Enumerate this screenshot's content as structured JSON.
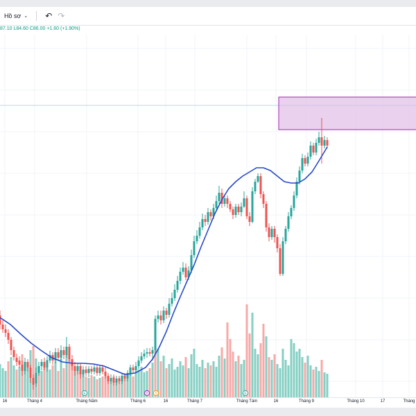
{
  "toolbar": {
    "profile_label": "Hồ sơ",
    "profile_chevron": "⌄",
    "undo_icon": "undo-icon",
    "redo_icon": "redo-icon"
  },
  "legend": {
    "ohlc_text": "87.10  L84.60  C86.00  +1.60 (+1.90%)"
  },
  "colors": {
    "up": "#26a69a",
    "down": "#ef5350",
    "up_volume": "#85cfc3",
    "down_volume": "#f7a9a7",
    "ma_line": "#2547c9",
    "zone_fill": "#e1bee7",
    "zone_border": "#9c27b0",
    "price_line": "#b2dfdb"
  },
  "chart_data": {
    "type": "candlestick",
    "x_labels": [
      "16",
      "Tháng 4",
      "Tháng Năm",
      "Tháng 6",
      "16",
      "Tháng 7",
      "Tháng Tám",
      "16",
      "Tháng 9",
      "Tháng 10",
      "17",
      "Tháng"
    ],
    "markers": [
      {
        "label": "E",
        "color": "#26a69a"
      },
      {
        "label": "D",
        "color": "#9c27b0"
      },
      {
        "label": "S",
        "color": "#ff9800"
      },
      {
        "label": "E",
        "color": "#26a69a"
      }
    ],
    "candles": [
      [
        0,
        405,
        418,
        398,
        425
      ],
      [
        4,
        418,
        425,
        412,
        430
      ],
      [
        8,
        425,
        430,
        418,
        436
      ],
      [
        12,
        430,
        440,
        425,
        446
      ],
      [
        16,
        440,
        455,
        436,
        462
      ],
      [
        20,
        455,
        465,
        450,
        470
      ],
      [
        24,
        466,
        472,
        460,
        478
      ],
      [
        28,
        470,
        476,
        464,
        480
      ],
      [
        32,
        476,
        485,
        470,
        492
      ],
      [
        36,
        485,
        472,
        466,
        490
      ],
      [
        40,
        472,
        480,
        468,
        486
      ],
      [
        44,
        480,
        495,
        476,
        502
      ],
      [
        48,
        495,
        505,
        490,
        512
      ],
      [
        52,
        503,
        488,
        480,
        508
      ],
      [
        56,
        488,
        478,
        472,
        492
      ],
      [
        60,
        478,
        472,
        468,
        484
      ],
      [
        64,
        472,
        480,
        466,
        484
      ],
      [
        68,
        480,
        470,
        464,
        486
      ],
      [
        72,
        470,
        462,
        456,
        474
      ],
      [
        76,
        462,
        470,
        458,
        476
      ],
      [
        80,
        470,
        458,
        452,
        474
      ],
      [
        84,
        458,
        466,
        452,
        470
      ],
      [
        88,
        466,
        455,
        448,
        470
      ],
      [
        92,
        455,
        462,
        450,
        468
      ],
      [
        96,
        462,
        450,
        436,
        466
      ],
      [
        100,
        450,
        468,
        446,
        472
      ],
      [
        104,
        468,
        478,
        462,
        484
      ],
      [
        108,
        478,
        485,
        472,
        492
      ],
      [
        112,
        485,
        478,
        474,
        490
      ],
      [
        116,
        478,
        490,
        474,
        496
      ],
      [
        120,
        490,
        483,
        478,
        494
      ],
      [
        124,
        483,
        488,
        478,
        492
      ],
      [
        128,
        488,
        482,
        478,
        494
      ],
      [
        132,
        482,
        486,
        478,
        490
      ],
      [
        136,
        486,
        480,
        476,
        490
      ],
      [
        140,
        480,
        488,
        476,
        492
      ],
      [
        144,
        488,
        480,
        476,
        492
      ],
      [
        148,
        480,
        486,
        476,
        490
      ],
      [
        152,
        486,
        492,
        480,
        496
      ],
      [
        156,
        492,
        500,
        488,
        504
      ],
      [
        160,
        500,
        495,
        490,
        504
      ],
      [
        164,
        495,
        502,
        490,
        506
      ],
      [
        168,
        502,
        496,
        492,
        506
      ],
      [
        172,
        496,
        500,
        492,
        504
      ],
      [
        176,
        500,
        492,
        488,
        504
      ],
      [
        180,
        492,
        496,
        488,
        500
      ],
      [
        184,
        496,
        488,
        484,
        500
      ],
      [
        188,
        488,
        480,
        476,
        492
      ],
      [
        192,
        480,
        484,
        476,
        488
      ],
      [
        196,
        484,
        478,
        472,
        488
      ],
      [
        200,
        478,
        470,
        464,
        482
      ],
      [
        204,
        470,
        464,
        458,
        474
      ],
      [
        208,
        464,
        460,
        454,
        468
      ],
      [
        212,
        460,
        458,
        452,
        466
      ],
      [
        216,
        458,
        460,
        452,
        464
      ],
      [
        220,
        460,
        455,
        450,
        470
      ],
      [
        224,
        455,
        410,
        405,
        460
      ],
      [
        228,
        410,
        405,
        398,
        415
      ],
      [
        232,
        405,
        412,
        398,
        418
      ],
      [
        236,
        412,
        398,
        392,
        416
      ],
      [
        240,
        398,
        404,
        394,
        410
      ],
      [
        244,
        404,
        388,
        380,
        408
      ],
      [
        248,
        388,
        380,
        372,
        392
      ],
      [
        252,
        380,
        368,
        360,
        384
      ],
      [
        256,
        368,
        355,
        348,
        372
      ],
      [
        260,
        355,
        342,
        336,
        360
      ],
      [
        264,
        342,
        336,
        328,
        346
      ],
      [
        268,
        336,
        350,
        330,
        354
      ],
      [
        272,
        350,
        340,
        334,
        354
      ],
      [
        276,
        340,
        318,
        310,
        344
      ],
      [
        280,
        318,
        298,
        290,
        322
      ],
      [
        284,
        298,
        290,
        282,
        302
      ],
      [
        288,
        290,
        278,
        270,
        294
      ],
      [
        292,
        278,
        266,
        258,
        282
      ],
      [
        296,
        266,
        270,
        260,
        276
      ],
      [
        300,
        270,
        256,
        250,
        274
      ],
      [
        304,
        256,
        262,
        252,
        268
      ],
      [
        308,
        262,
        250,
        244,
        266
      ],
      [
        312,
        250,
        240,
        232,
        254
      ],
      [
        316,
        240,
        228,
        218,
        244
      ],
      [
        320,
        228,
        244,
        222,
        250
      ],
      [
        324,
        244,
        236,
        230,
        248
      ],
      [
        328,
        236,
        244,
        232,
        250
      ],
      [
        332,
        244,
        252,
        240,
        256
      ],
      [
        336,
        252,
        260,
        248,
        266
      ],
      [
        340,
        260,
        248,
        244,
        264
      ],
      [
        344,
        248,
        256,
        244,
        260
      ],
      [
        348,
        256,
        248,
        242,
        262
      ],
      [
        352,
        248,
        236,
        226,
        250
      ],
      [
        356,
        236,
        262,
        232,
        266
      ],
      [
        360,
        262,
        270,
        256,
        276
      ],
      [
        364,
        270,
        226,
        220,
        272
      ],
      [
        368,
        226,
        212,
        208,
        230
      ],
      [
        372,
        212,
        204,
        200,
        214
      ],
      [
        376,
        204,
        230,
        200,
        236
      ],
      [
        380,
        230,
        244,
        226,
        250
      ],
      [
        384,
        244,
        278,
        240,
        284
      ],
      [
        388,
        278,
        292,
        272,
        298
      ],
      [
        392,
        292,
        280,
        276,
        296
      ],
      [
        396,
        280,
        292,
        276,
        300
      ],
      [
        400,
        292,
        308,
        288,
        314
      ],
      [
        404,
        308,
        345,
        302,
        348
      ],
      [
        408,
        345,
        298,
        292,
        348
      ],
      [
        412,
        298,
        280,
        276,
        302
      ],
      [
        416,
        280,
        262,
        256,
        284
      ],
      [
        420,
        262,
        250,
        246,
        266
      ],
      [
        424,
        250,
        232,
        226,
        254
      ],
      [
        428,
        232,
        212,
        206,
        236
      ],
      [
        432,
        212,
        196,
        190,
        216
      ],
      [
        436,
        196,
        178,
        172,
        200
      ],
      [
        440,
        178,
        186,
        174,
        190
      ],
      [
        444,
        186,
        176,
        170,
        190
      ],
      [
        448,
        176,
        160,
        154,
        180
      ],
      [
        452,
        160,
        170,
        156,
        174
      ],
      [
        456,
        170,
        156,
        150,
        174
      ],
      [
        460,
        156,
        148,
        140,
        160
      ],
      [
        464,
        148,
        160,
        120,
        186
      ],
      [
        468,
        160,
        152,
        146,
        164
      ],
      [
        472,
        152,
        160,
        148,
        164
      ]
    ],
    "volumes": [
      [
        0,
        48,
        1
      ],
      [
        4,
        42,
        1
      ],
      [
        8,
        38,
        1
      ],
      [
        12,
        52,
        0
      ],
      [
        16,
        58,
        1
      ],
      [
        20,
        46,
        1
      ],
      [
        24,
        40,
        0
      ],
      [
        28,
        44,
        1
      ],
      [
        32,
        62,
        0
      ],
      [
        36,
        50,
        1
      ],
      [
        40,
        44,
        1
      ],
      [
        44,
        68,
        1
      ],
      [
        48,
        74,
        0
      ],
      [
        52,
        56,
        1
      ],
      [
        56,
        36,
        0
      ],
      [
        60,
        38,
        1
      ],
      [
        64,
        48,
        0
      ],
      [
        68,
        54,
        1
      ],
      [
        72,
        40,
        1
      ],
      [
        76,
        46,
        0
      ],
      [
        80,
        52,
        1
      ],
      [
        84,
        38,
        0
      ],
      [
        88,
        56,
        1
      ],
      [
        92,
        42,
        0
      ],
      [
        96,
        72,
        1
      ],
      [
        100,
        60,
        0
      ],
      [
        104,
        50,
        0
      ],
      [
        108,
        42,
        1
      ],
      [
        112,
        38,
        0
      ],
      [
        116,
        44,
        0
      ],
      [
        120,
        34,
        1
      ],
      [
        124,
        30,
        0
      ],
      [
        128,
        28,
        1
      ],
      [
        132,
        32,
        0
      ],
      [
        136,
        30,
        1
      ],
      [
        140,
        26,
        0
      ],
      [
        144,
        28,
        1
      ],
      [
        148,
        30,
        0
      ],
      [
        152,
        34,
        0
      ],
      [
        156,
        28,
        0
      ],
      [
        160,
        24,
        1
      ],
      [
        164,
        30,
        0
      ],
      [
        168,
        26,
        1
      ],
      [
        172,
        28,
        0
      ],
      [
        176,
        30,
        1
      ],
      [
        180,
        32,
        0
      ],
      [
        184,
        28,
        1
      ],
      [
        188,
        34,
        1
      ],
      [
        192,
        30,
        0
      ],
      [
        196,
        38,
        1
      ],
      [
        200,
        40,
        1
      ],
      [
        204,
        44,
        1
      ],
      [
        208,
        36,
        1
      ],
      [
        212,
        38,
        1
      ],
      [
        216,
        42,
        0
      ],
      [
        220,
        50,
        1
      ],
      [
        224,
        84,
        0
      ],
      [
        228,
        70,
        1
      ],
      [
        232,
        52,
        0
      ],
      [
        236,
        60,
        1
      ],
      [
        240,
        42,
        0
      ],
      [
        244,
        48,
        1
      ],
      [
        248,
        56,
        1
      ],
      [
        252,
        40,
        1
      ],
      [
        256,
        44,
        1
      ],
      [
        260,
        52,
        1
      ],
      [
        264,
        46,
        1
      ],
      [
        268,
        58,
        0
      ],
      [
        272,
        42,
        1
      ],
      [
        276,
        62,
        1
      ],
      [
        280,
        70,
        1
      ],
      [
        284,
        48,
        1
      ],
      [
        288,
        44,
        1
      ],
      [
        292,
        54,
        1
      ],
      [
        296,
        42,
        0
      ],
      [
        300,
        50,
        1
      ],
      [
        304,
        46,
        0
      ],
      [
        308,
        52,
        1
      ],
      [
        312,
        44,
        1
      ],
      [
        316,
        60,
        1
      ],
      [
        320,
        72,
        0
      ],
      [
        324,
        56,
        1
      ],
      [
        328,
        108,
        0
      ],
      [
        332,
        84,
        0
      ],
      [
        336,
        66,
        0
      ],
      [
        340,
        52,
        1
      ],
      [
        344,
        60,
        0
      ],
      [
        348,
        48,
        1
      ],
      [
        352,
        54,
        1
      ],
      [
        356,
        134,
        0
      ],
      [
        360,
        92,
        0
      ],
      [
        364,
        122,
        1
      ],
      [
        368,
        70,
        1
      ],
      [
        372,
        62,
        1
      ],
      [
        376,
        78,
        0
      ],
      [
        380,
        106,
        0
      ],
      [
        384,
        88,
        1
      ],
      [
        388,
        58,
        0
      ],
      [
        392,
        54,
        1
      ],
      [
        396,
        62,
        0
      ],
      [
        400,
        48,
        1
      ],
      [
        404,
        42,
        1
      ],
      [
        408,
        70,
        1
      ],
      [
        412,
        54,
        1
      ],
      [
        416,
        46,
        1
      ],
      [
        420,
        84,
        1
      ],
      [
        424,
        78,
        1
      ],
      [
        428,
        66,
        1
      ],
      [
        432,
        70,
        1
      ],
      [
        436,
        58,
        1
      ],
      [
        440,
        50,
        0
      ],
      [
        444,
        60,
        1
      ],
      [
        448,
        46,
        1
      ],
      [
        452,
        40,
        0
      ],
      [
        456,
        44,
        1
      ],
      [
        460,
        38,
        1
      ],
      [
        464,
        54,
        0
      ],
      [
        468,
        36,
        1
      ],
      [
        472,
        34,
        1
      ]
    ],
    "ma": [
      [
        0,
        408
      ],
      [
        15,
        418
      ],
      [
        30,
        432
      ],
      [
        45,
        445
      ],
      [
        60,
        456
      ],
      [
        75,
        466
      ],
      [
        90,
        472
      ],
      [
        105,
        474
      ],
      [
        120,
        474
      ],
      [
        135,
        475
      ],
      [
        150,
        478
      ],
      [
        165,
        484
      ],
      [
        180,
        490
      ],
      [
        195,
        488
      ],
      [
        210,
        480
      ],
      [
        220,
        468
      ],
      [
        230,
        450
      ],
      [
        240,
        428
      ],
      [
        250,
        402
      ],
      [
        260,
        378
      ],
      [
        270,
        355
      ],
      [
        280,
        332
      ],
      [
        290,
        306
      ],
      [
        300,
        282
      ],
      [
        310,
        258
      ],
      [
        320,
        238
      ],
      [
        330,
        222
      ],
      [
        340,
        212
      ],
      [
        350,
        204
      ],
      [
        360,
        198
      ],
      [
        370,
        192
      ],
      [
        380,
        192
      ],
      [
        390,
        196
      ],
      [
        400,
        204
      ],
      [
        410,
        212
      ],
      [
        420,
        214
      ],
      [
        430,
        214
      ],
      [
        440,
        208
      ],
      [
        450,
        198
      ],
      [
        460,
        182
      ],
      [
        472,
        162
      ]
    ],
    "zone": {
      "x0": 402,
      "x1": 600,
      "y0": 90,
      "y1": 137
    },
    "price_line_y": 102
  }
}
